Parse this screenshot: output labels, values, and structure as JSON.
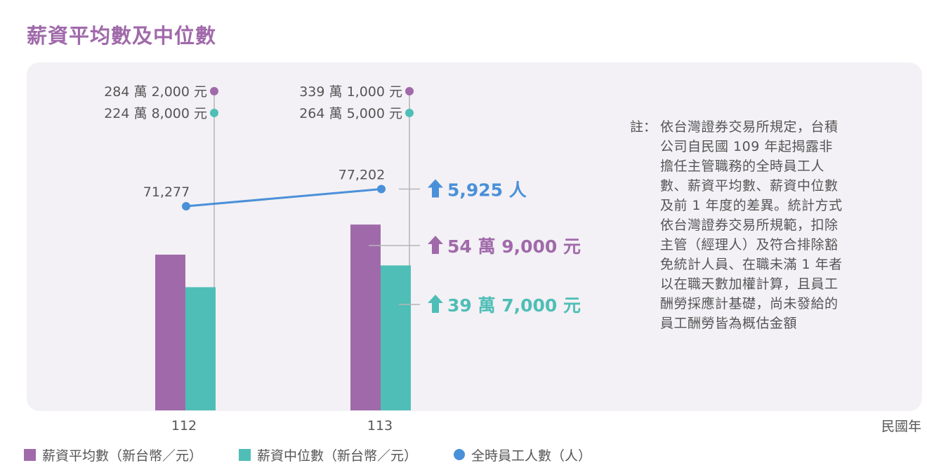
{
  "title": "薪資平均數及中位數",
  "note": {
    "label": "註：",
    "text": "依台灣證券交易所規定，台積公司自民國 109 年起揭露非擔任主管職務的全時員工人數、薪資平均數、薪資中位數及前 1 年度的差異。統計方式依台灣證券交易所規範，扣除主管（經理人）及符合排除豁免統計人員、在職未滿 1 年者以在職天數加權計算，且員工酬勞採應計基礎，尚未發給的員工酬勞皆為概估金額"
  },
  "x_unit": "民國年",
  "colors": {
    "average": "#a06aaa",
    "median": "#4fbeb6",
    "employees": "#4a90d9",
    "guide": "#b5b5b5",
    "text": "#555555"
  },
  "chart_data": {
    "type": "bar",
    "categories": [
      "112",
      "113"
    ],
    "series": [
      {
        "name": "薪資平均數（新台幣／元）",
        "kind": "bar",
        "values": [
          2842000,
          3391000
        ],
        "value_labels": [
          "284 萬 2,000 元",
          "339 萬 1,000 元"
        ]
      },
      {
        "name": "薪資中位數（新台幣／元）",
        "kind": "bar",
        "values": [
          2248000,
          2645000
        ],
        "value_labels": [
          "224 萬 8,000 元",
          "264 萬 5,000 元"
        ]
      },
      {
        "name": "全時員工人數（人）",
        "kind": "line",
        "values": [
          71277,
          77202
        ],
        "value_labels": [
          "71,277",
          "77,202"
        ]
      }
    ],
    "changes": [
      {
        "series": "全時員工人數（人）",
        "label": "5,925 人",
        "direction": "up"
      },
      {
        "series": "薪資平均數（新台幣／元）",
        "label": "54 萬 9,000 元",
        "direction": "up"
      },
      {
        "series": "薪資中位數（新台幣／元）",
        "label": "39 萬 7,000 元",
        "direction": "up"
      }
    ],
    "legend_position": "bottom-left"
  }
}
